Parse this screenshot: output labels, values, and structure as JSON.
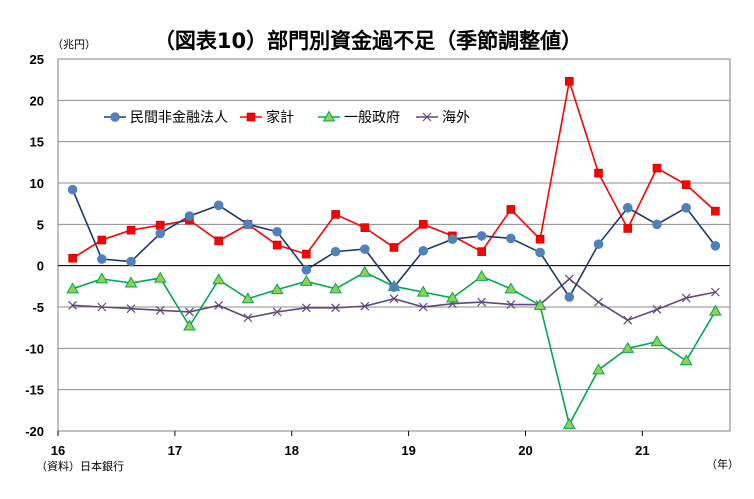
{
  "chart_data": {
    "type": "line",
    "title": "（図表10）部門別資金過不足（季節調整値）",
    "y_unit_label": "（兆円）",
    "x_unit_label": "（年）",
    "source_label": "（資料）日本銀行",
    "ylim": [
      -20,
      25
    ],
    "y_ticks": [
      25,
      20,
      15,
      10,
      5,
      0,
      -5,
      -10,
      -15,
      -20
    ],
    "x_tick_labels": [
      "16",
      "17",
      "18",
      "19",
      "20",
      "21"
    ],
    "x_tick_positions": [
      0,
      4,
      8,
      12,
      16,
      20
    ],
    "grid": true,
    "legend_position": "upper-left",
    "series": [
      {
        "name": "民間非金融法人",
        "color": "#1f3864",
        "marker_color": "#4f81bd",
        "marker": "circle",
        "values": [
          9.2,
          0.8,
          0.5,
          3.9,
          6.0,
          7.3,
          5.0,
          4.1,
          -0.5,
          1.7,
          2.0,
          -2.6,
          1.8,
          3.2,
          3.6,
          3.3,
          1.6,
          -3.8,
          2.6,
          7.0,
          5.0,
          7.0,
          2.4
        ]
      },
      {
        "name": "家計",
        "color": "#ff0000",
        "marker_color": "#ff0000",
        "marker": "square",
        "values": [
          0.9,
          3.1,
          4.3,
          4.9,
          5.5,
          3.0,
          5.0,
          2.5,
          1.4,
          6.2,
          4.6,
          2.2,
          5.0,
          3.6,
          1.7,
          6.8,
          3.2,
          22.3,
          11.2,
          4.5,
          11.8,
          9.8,
          6.6
        ]
      },
      {
        "name": "一般政府",
        "color": "#00a84f",
        "marker_color": "#92d050",
        "marker": "triangle",
        "values": [
          -2.8,
          -1.6,
          -2.1,
          -1.5,
          -7.3,
          -1.7,
          -4.0,
          -2.9,
          -1.9,
          -2.8,
          -0.8,
          -2.5,
          -3.2,
          -3.9,
          -1.3,
          -2.8,
          -4.8,
          -19.2,
          -12.6,
          -10.0,
          -9.2,
          -11.5,
          -5.5
        ]
      },
      {
        "name": "海外",
        "color": "#604a7b",
        "marker_color": "#604a7b",
        "marker": "x",
        "values": [
          -4.8,
          -5.0,
          -5.2,
          -5.4,
          -5.6,
          -4.8,
          -6.3,
          -5.6,
          -5.1,
          -5.1,
          -4.9,
          -4.0,
          -5.0,
          -4.6,
          -4.4,
          -4.7,
          -4.7,
          -1.6,
          -4.4,
          -6.6,
          -5.3,
          -3.9,
          -3.2
        ]
      }
    ]
  }
}
